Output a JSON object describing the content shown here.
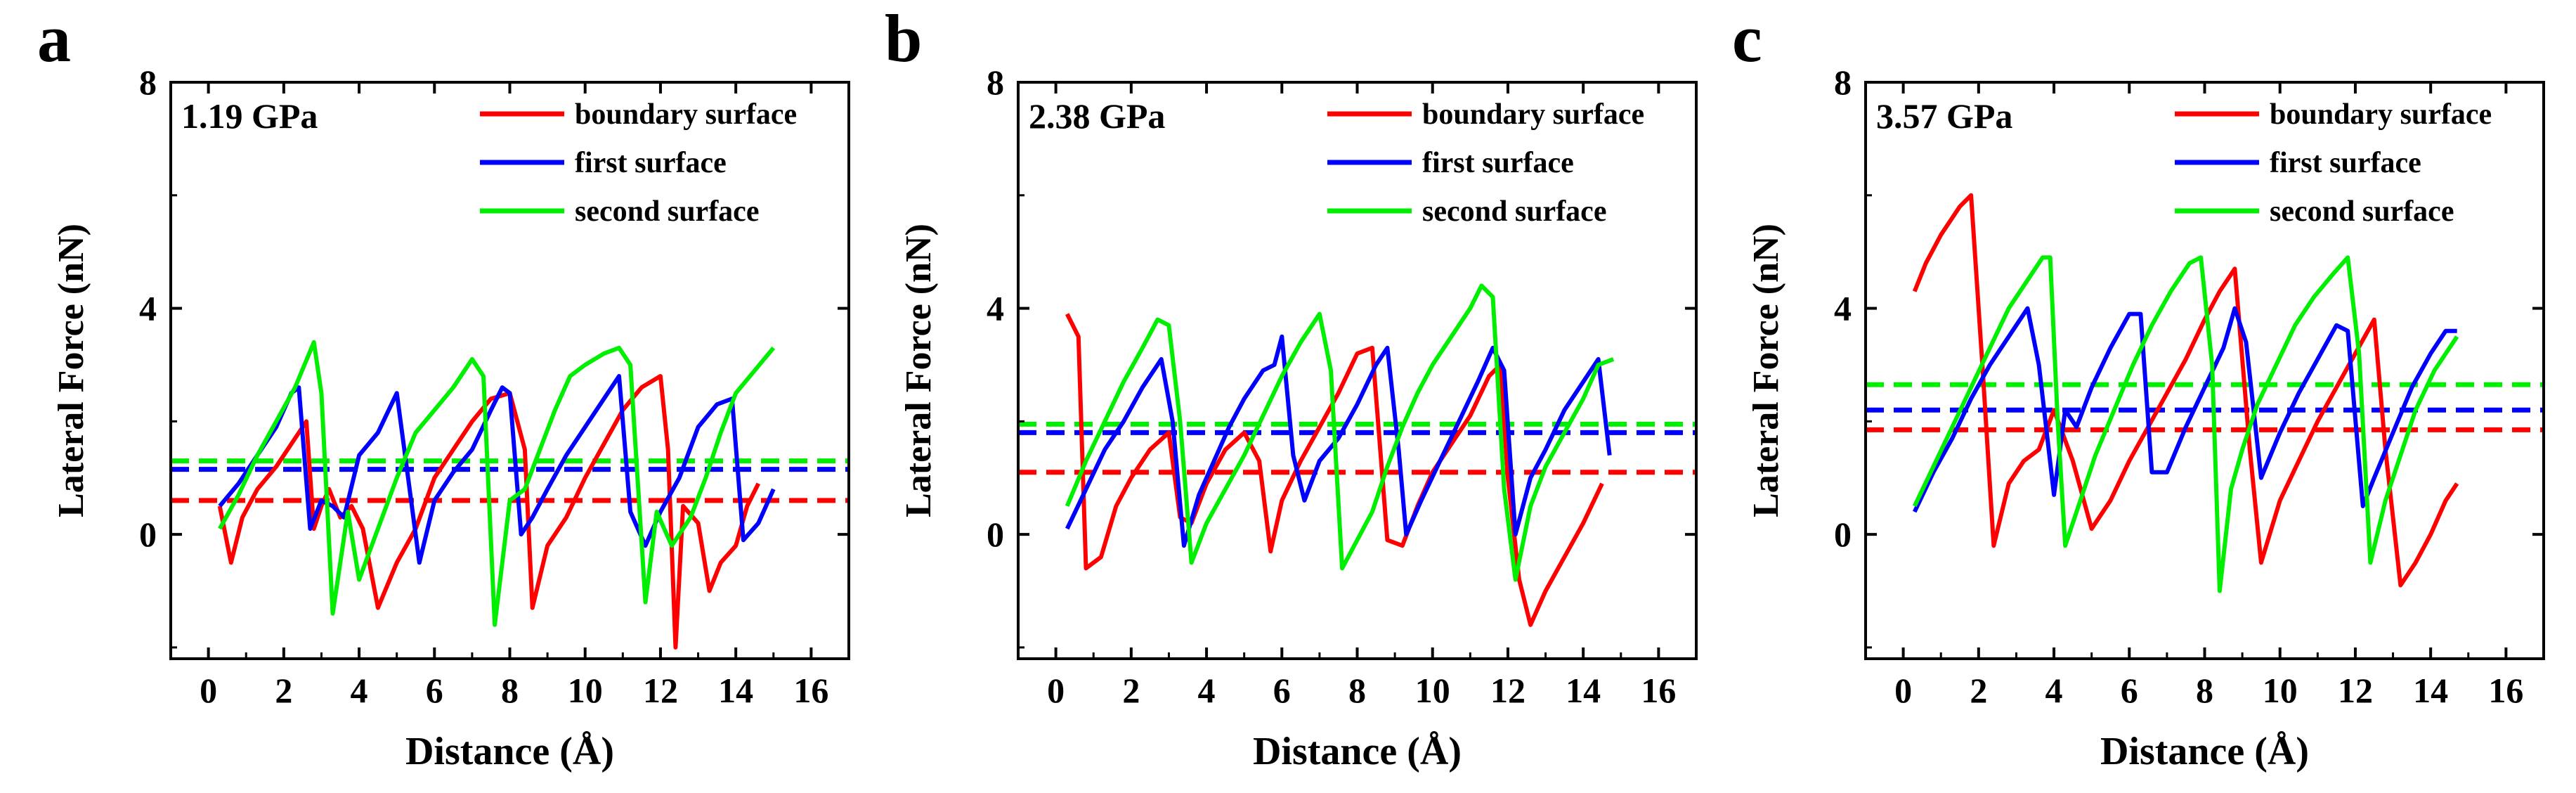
{
  "chart_data": [
    {
      "type": "line",
      "panel_letter": "a",
      "annotation": "1.19 GPa",
      "xlabel": "Distance (Å)",
      "ylabel": "Lateral Force (nN)",
      "xlim": [
        -1,
        17
      ],
      "ylim": [
        -2.2,
        8
      ],
      "xticks": [
        0,
        2,
        4,
        6,
        8,
        10,
        12,
        14,
        16
      ],
      "yticks": [
        0,
        4,
        8
      ],
      "legend_position": "top-right",
      "grid": false,
      "series": [
        {
          "name": "boundary surface",
          "color": "#ff0000",
          "mean": 0.6,
          "x": [
            0.3,
            0.6,
            0.9,
            1.3,
            1.8,
            2.2,
            2.6,
            2.8,
            3.0,
            3.2,
            3.5,
            3.8,
            4.1,
            4.5,
            5.0,
            5.5,
            6.0,
            6.5,
            7.0,
            7.5,
            8.0,
            8.4,
            8.6,
            9.0,
            9.5,
            10.0,
            10.5,
            11.0,
            11.5,
            12.0,
            12.2,
            12.4,
            12.6,
            13.0,
            13.3,
            13.6,
            14.0,
            14.3,
            14.6
          ],
          "y": [
            0.5,
            -0.5,
            0.3,
            0.8,
            1.2,
            1.6,
            2.0,
            0.1,
            0.5,
            0.8,
            0.3,
            0.5,
            0.1,
            -1.3,
            -0.5,
            0.1,
            1.0,
            1.5,
            2.0,
            2.4,
            2.5,
            1.5,
            -1.3,
            -0.2,
            0.3,
            1.0,
            1.6,
            2.2,
            2.6,
            2.8,
            1.5,
            -2.0,
            0.5,
            0.2,
            -1.0,
            -0.5,
            -0.2,
            0.5,
            0.9
          ]
        },
        {
          "name": "first surface",
          "color": "#0000ff",
          "mean": 1.15,
          "x": [
            0.3,
            0.8,
            1.3,
            1.8,
            2.2,
            2.4,
            2.7,
            3.0,
            3.3,
            3.6,
            4.0,
            4.5,
            5.0,
            5.3,
            5.6,
            6.0,
            6.5,
            7.0,
            7.5,
            7.8,
            8.0,
            8.3,
            8.6,
            9.0,
            9.5,
            10.0,
            10.5,
            10.9,
            11.2,
            11.6,
            12.0,
            12.5,
            13.0,
            13.5,
            13.9,
            14.2,
            14.6,
            15.0
          ],
          "y": [
            0.5,
            0.9,
            1.4,
            1.9,
            2.5,
            2.6,
            0.1,
            0.6,
            0.5,
            0.3,
            1.4,
            1.8,
            2.5,
            1.0,
            -0.5,
            0.6,
            1.1,
            1.5,
            2.2,
            2.6,
            2.5,
            0.0,
            0.3,
            0.8,
            1.4,
            1.9,
            2.4,
            2.8,
            0.4,
            -0.2,
            0.4,
            1.0,
            1.9,
            2.3,
            2.4,
            -0.1,
            0.2,
            0.8
          ]
        },
        {
          "name": "second surface",
          "color": "#00ee00",
          "mean": 1.3,
          "x": [
            0.3,
            0.8,
            1.3,
            1.8,
            2.3,
            2.8,
            3.0,
            3.3,
            3.7,
            4.0,
            4.5,
            5.0,
            5.5,
            6.0,
            6.5,
            7.0,
            7.3,
            7.6,
            8.0,
            8.4,
            8.8,
            9.2,
            9.6,
            10.0,
            10.5,
            10.9,
            11.2,
            11.6,
            11.9,
            12.3,
            12.8,
            13.2,
            13.6,
            14.0,
            14.5,
            15.0
          ],
          "y": [
            0.1,
            0.7,
            1.4,
            2.0,
            2.6,
            3.4,
            2.5,
            -1.4,
            0.4,
            -0.8,
            0.1,
            1.0,
            1.8,
            2.2,
            2.6,
            3.1,
            2.8,
            -1.6,
            0.6,
            0.8,
            1.5,
            2.2,
            2.8,
            3.0,
            3.2,
            3.3,
            3.0,
            -1.2,
            0.4,
            -0.2,
            0.3,
            1.0,
            1.8,
            2.5,
            2.9,
            3.3
          ]
        }
      ]
    },
    {
      "type": "line",
      "panel_letter": "b",
      "annotation": "2.38 GPa",
      "xlabel": "Distance (Å)",
      "ylabel": "Lateral Force (nN)",
      "xlim": [
        -1,
        17
      ],
      "ylim": [
        -2.2,
        8
      ],
      "xticks": [
        0,
        2,
        4,
        6,
        8,
        10,
        12,
        14,
        16
      ],
      "yticks": [
        0,
        4,
        8
      ],
      "legend_position": "top-right",
      "grid": false,
      "series": [
        {
          "name": "boundary surface",
          "color": "#ff0000",
          "mean": 1.1,
          "x": [
            0.3,
            0.6,
            0.8,
            1.2,
            1.6,
            2.0,
            2.5,
            3.0,
            3.3,
            3.6,
            4.0,
            4.5,
            5.0,
            5.4,
            5.7,
            6.0,
            6.5,
            7.0,
            7.5,
            8.0,
            8.4,
            8.8,
            9.2,
            9.6,
            10.0,
            10.5,
            11.0,
            11.5,
            11.8,
            12.0,
            12.3,
            12.6,
            13.0,
            13.5,
            14.0,
            14.5
          ],
          "y": [
            3.9,
            3.5,
            -0.6,
            -0.4,
            0.5,
            1.0,
            1.5,
            1.8,
            0.3,
            0.2,
            0.9,
            1.5,
            1.8,
            1.3,
            -0.3,
            0.6,
            1.3,
            1.9,
            2.5,
            3.2,
            3.3,
            -0.1,
            -0.2,
            0.5,
            1.1,
            1.6,
            2.1,
            2.8,
            3.0,
            1.0,
            -0.8,
            -1.6,
            -1.0,
            -0.4,
            0.2,
            0.9
          ]
        },
        {
          "name": "first surface",
          "color": "#0000ff",
          "mean": 1.8,
          "x": [
            0.3,
            0.8,
            1.3,
            1.8,
            2.3,
            2.8,
            3.1,
            3.4,
            3.8,
            4.2,
            4.6,
            5.0,
            5.5,
            5.8,
            6.0,
            6.3,
            6.6,
            7.0,
            7.5,
            8.0,
            8.5,
            8.8,
            9.1,
            9.3,
            9.7,
            10.2,
            10.7,
            11.2,
            11.6,
            11.9,
            12.2,
            12.6,
            13.0,
            13.5,
            14.0,
            14.4,
            14.7
          ],
          "y": [
            0.1,
            0.8,
            1.5,
            2.0,
            2.6,
            3.1,
            2.0,
            -0.2,
            0.7,
            1.3,
            1.9,
            2.4,
            2.9,
            3.0,
            3.5,
            1.4,
            0.6,
            1.3,
            1.7,
            2.3,
            3.0,
            3.3,
            1.5,
            0.0,
            0.6,
            1.3,
            2.0,
            2.7,
            3.3,
            2.9,
            0.0,
            1.0,
            1.5,
            2.2,
            2.7,
            3.1,
            1.4
          ]
        },
        {
          "name": "second surface",
          "color": "#00ee00",
          "mean": 1.95,
          "x": [
            0.3,
            0.8,
            1.3,
            1.8,
            2.3,
            2.7,
            3.0,
            3.3,
            3.6,
            4.0,
            4.5,
            5.0,
            5.5,
            6.0,
            6.5,
            7.0,
            7.3,
            7.6,
            8.0,
            8.4,
            8.8,
            9.2,
            9.6,
            10.0,
            10.5,
            11.0,
            11.3,
            11.6,
            11.9,
            12.2,
            12.6,
            13.0,
            13.5,
            14.0,
            14.4,
            14.8
          ],
          "y": [
            0.5,
            1.3,
            2.0,
            2.7,
            3.3,
            3.8,
            3.7,
            2.0,
            -0.5,
            0.2,
            0.8,
            1.4,
            2.1,
            2.8,
            3.4,
            3.9,
            2.9,
            -0.6,
            -0.1,
            0.4,
            1.2,
            1.9,
            2.5,
            3.0,
            3.5,
            4.0,
            4.4,
            4.2,
            0.8,
            -0.8,
            0.5,
            1.2,
            1.8,
            2.4,
            3.0,
            3.1
          ]
        }
      ]
    },
    {
      "type": "line",
      "panel_letter": "c",
      "annotation": "3.57 GPa",
      "xlabel": "Distance (Å)",
      "ylabel": "Lateral Force (nN)",
      "xlim": [
        -1,
        17
      ],
      "ylim": [
        -2.2,
        8
      ],
      "xticks": [
        0,
        2,
        4,
        6,
        8,
        10,
        12,
        14,
        16
      ],
      "yticks": [
        0,
        4,
        8
      ],
      "legend_position": "top-right",
      "grid": false,
      "series": [
        {
          "name": "boundary surface",
          "color": "#ff0000",
          "mean": 1.85,
          "x": [
            0.3,
            0.6,
            1.0,
            1.5,
            1.8,
            2.1,
            2.4,
            2.8,
            3.2,
            3.6,
            4.0,
            4.5,
            5.0,
            5.5,
            6.0,
            6.5,
            7.0,
            7.5,
            8.0,
            8.4,
            8.8,
            9.2,
            9.5,
            10.0,
            10.5,
            11.0,
            11.5,
            12.0,
            12.5,
            12.8,
            13.2,
            13.6,
            14.0,
            14.4,
            14.7
          ],
          "y": [
            4.3,
            4.8,
            5.3,
            5.8,
            6.0,
            3.0,
            -0.2,
            0.9,
            1.3,
            1.5,
            2.2,
            1.3,
            0.1,
            0.6,
            1.3,
            1.9,
            2.5,
            3.1,
            3.8,
            4.3,
            4.7,
            1.5,
            -0.5,
            0.6,
            1.3,
            2.0,
            2.6,
            3.2,
            3.8,
            1.5,
            -0.9,
            -0.5,
            0.0,
            0.6,
            0.9
          ]
        },
        {
          "name": "first surface",
          "color": "#0000ff",
          "mean": 2.2,
          "x": [
            0.3,
            0.8,
            1.3,
            1.8,
            2.3,
            2.8,
            3.3,
            3.6,
            4.0,
            4.3,
            4.6,
            5.0,
            5.5,
            6.0,
            6.3,
            6.6,
            7.0,
            7.5,
            8.0,
            8.5,
            8.8,
            9.1,
            9.5,
            10.0,
            10.5,
            11.0,
            11.5,
            11.8,
            12.2,
            12.5,
            13.0,
            13.5,
            14.0,
            14.4,
            14.7
          ],
          "y": [
            0.4,
            1.1,
            1.7,
            2.4,
            3.0,
            3.5,
            4.0,
            3.0,
            0.7,
            2.2,
            1.9,
            2.6,
            3.3,
            3.9,
            3.9,
            1.1,
            1.1,
            1.9,
            2.6,
            3.3,
            4.0,
            3.4,
            1.0,
            1.8,
            2.5,
            3.1,
            3.7,
            3.6,
            0.5,
            1.0,
            1.8,
            2.6,
            3.2,
            3.6,
            3.6
          ]
        },
        {
          "name": "second surface",
          "color": "#00ee00",
          "mean": 2.65,
          "x": [
            0.3,
            0.8,
            1.3,
            1.8,
            2.3,
            2.8,
            3.3,
            3.7,
            3.9,
            4.1,
            4.3,
            4.7,
            5.1,
            5.6,
            6.1,
            6.6,
            7.1,
            7.6,
            7.9,
            8.2,
            8.4,
            8.7,
            9.0,
            9.4,
            9.9,
            10.4,
            10.9,
            11.4,
            11.8,
            12.1,
            12.4,
            12.8,
            13.2,
            13.6,
            14.1,
            14.7
          ],
          "y": [
            0.5,
            1.2,
            1.9,
            2.6,
            3.3,
            4.0,
            4.5,
            4.9,
            4.9,
            2.0,
            -0.2,
            0.6,
            1.4,
            2.2,
            3.0,
            3.7,
            4.3,
            4.8,
            4.9,
            3.0,
            -1.0,
            0.8,
            1.5,
            2.3,
            3.0,
            3.7,
            4.2,
            4.6,
            4.9,
            3.2,
            -0.5,
            0.6,
            1.4,
            2.2,
            2.9,
            3.5
          ]
        }
      ]
    }
  ]
}
